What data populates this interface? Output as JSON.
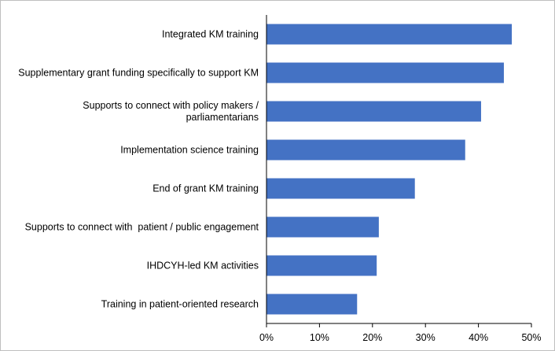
{
  "chart_data": {
    "type": "bar",
    "orientation": "horizontal",
    "categories": [
      "Integrated KM training",
      "Supplementary grant funding specifically to support KM",
      "Supports to connect with policy makers /\nparliamentarians",
      "Implementation science training",
      "End of grant KM training",
      "Supports to connect with  patient / public engagement",
      "IHDCYH-led KM activities",
      "Training in patient-oriented research"
    ],
    "values": [
      46.3,
      44.8,
      40.5,
      37.5,
      28.0,
      21.2,
      20.8,
      17.1
    ],
    "color": "#4472c4",
    "xlim": [
      0,
      50
    ],
    "xticks": [
      {
        "value": 0,
        "label": "0%"
      },
      {
        "value": 10,
        "label": "10%"
      },
      {
        "value": 20,
        "label": "20%"
      },
      {
        "value": 30,
        "label": "30%"
      },
      {
        "value": 40,
        "label": "40%"
      },
      {
        "value": 50,
        "label": "50%"
      }
    ],
    "grid": false
  }
}
